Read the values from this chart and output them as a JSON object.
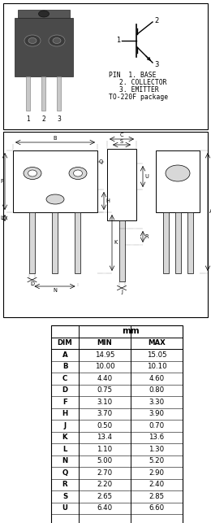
{
  "pin_labels": [
    "PIN  1. BASE",
    "2. COLLECTOR",
    "3. EMITTER",
    "TO-220F package"
  ],
  "table_header": [
    "DIM",
    "MIN",
    "MAX"
  ],
  "mm_label": "mm",
  "table_data": [
    [
      "A",
      "14.95",
      "15.05"
    ],
    [
      "B",
      "10.00",
      "10.10"
    ],
    [
      "C",
      "4.40",
      "4.60"
    ],
    [
      "D",
      "0.75",
      "0.80"
    ],
    [
      "F",
      "3.10",
      "3.30"
    ],
    [
      "H",
      "3.70",
      "3.90"
    ],
    [
      "J",
      "0.50",
      "0.70"
    ],
    [
      "K",
      "13.4",
      "13.6"
    ],
    [
      "L",
      "1.10",
      "1.30"
    ],
    [
      "N",
      "5.00",
      "5.20"
    ],
    [
      "Q",
      "2.70",
      "2.90"
    ],
    [
      "R",
      "2.20",
      "2.40"
    ],
    [
      "S",
      "2.65",
      "2.85"
    ],
    [
      "U",
      "6.40",
      "6.60"
    ]
  ],
  "bg_color": "#ffffff"
}
